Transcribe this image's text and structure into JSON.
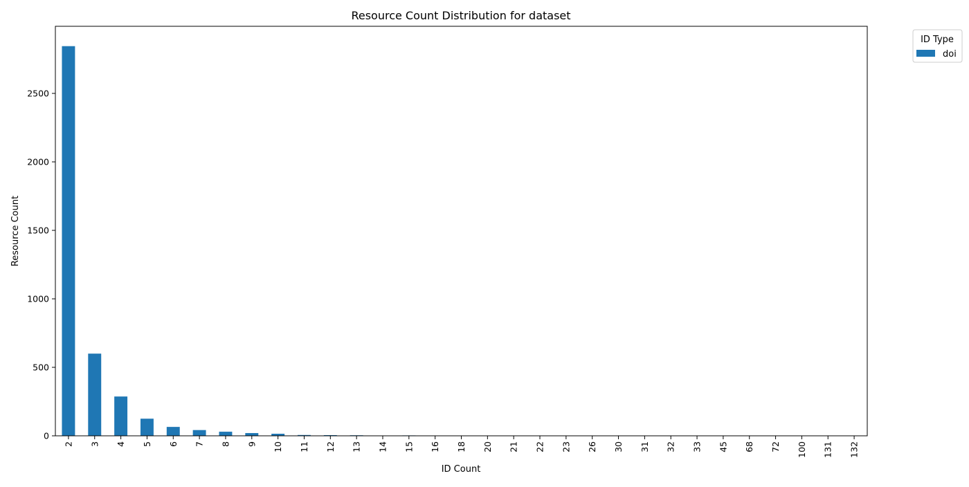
{
  "chart_data": {
    "type": "bar",
    "title": "Resource Count Distribution for dataset",
    "xlabel": "ID Count",
    "ylabel": "Resource Count",
    "categories": [
      "2",
      "3",
      "4",
      "5",
      "6",
      "7",
      "8",
      "9",
      "10",
      "11",
      "12",
      "13",
      "14",
      "15",
      "16",
      "18",
      "20",
      "21",
      "22",
      "23",
      "26",
      "30",
      "31",
      "32",
      "33",
      "45",
      "68",
      "72",
      "100",
      "131",
      "132"
    ],
    "series": [
      {
        "name": "doi",
        "color": "#1f77b4",
        "values": [
          2845,
          600,
          287,
          125,
          65,
          42,
          30,
          20,
          15,
          6,
          5,
          4,
          2,
          3,
          1,
          1,
          1,
          1,
          1,
          1,
          1,
          1,
          1,
          1,
          1,
          1,
          1,
          1,
          1,
          1,
          1
        ]
      }
    ],
    "ylim": [
      0,
      2990
    ],
    "yticks": [
      0,
      500,
      1000,
      1500,
      2000,
      2500
    ],
    "legend": {
      "title": "ID Type",
      "placement": "outside-top-right"
    },
    "grid": false
  }
}
